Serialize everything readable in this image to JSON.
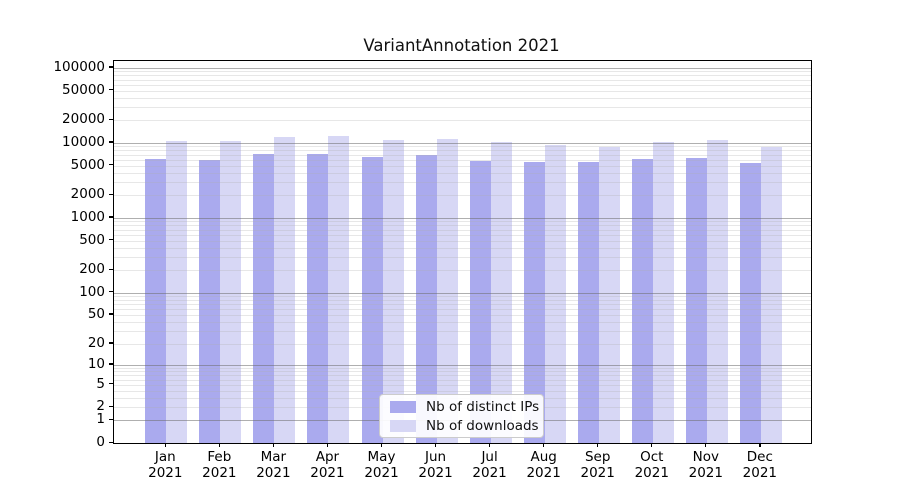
{
  "figure": {
    "title": "VariantAnnotation 2021"
  },
  "chart_data": {
    "type": "bar",
    "title": "VariantAnnotation 2021",
    "subtitle": "",
    "xlabel": "",
    "ylabel": "",
    "yscale": "log1p",
    "ylim": [
      0,
      126000
    ],
    "grid": "on",
    "legend_position": "inside-bottom-center",
    "categories": [
      "Jan",
      "Feb",
      "Mar",
      "Apr",
      "May",
      "Jun",
      "Jul",
      "Aug",
      "Sep",
      "Oct",
      "Nov",
      "Dec"
    ],
    "year_label": "2021",
    "y_ticks": [
      100000,
      50000,
      20000,
      10000,
      5000,
      2000,
      1000,
      500,
      200,
      100,
      50,
      20,
      10,
      5,
      2,
      1,
      0
    ],
    "y_tick_labels": [
      "100000",
      "50000",
      "20000",
      "10000",
      "5000",
      "2000",
      "1000",
      "500",
      "200",
      "100",
      "50",
      "20",
      "10",
      "5",
      "2",
      "1",
      "0"
    ],
    "series": [
      {
        "name": "Nb of distinct IPs",
        "color": "#aaaaee",
        "values": [
          6100,
          6000,
          7100,
          7100,
          6600,
          6900,
          5800,
          5500,
          5600,
          6200,
          6400,
          5400
        ]
      },
      {
        "name": "Nb of downloads",
        "color": "#d7d7f5",
        "values": [
          10500,
          10500,
          11900,
          12300,
          10900,
          11300,
          10300,
          9400,
          8800,
          10400,
          11100,
          8800
        ]
      }
    ]
  }
}
